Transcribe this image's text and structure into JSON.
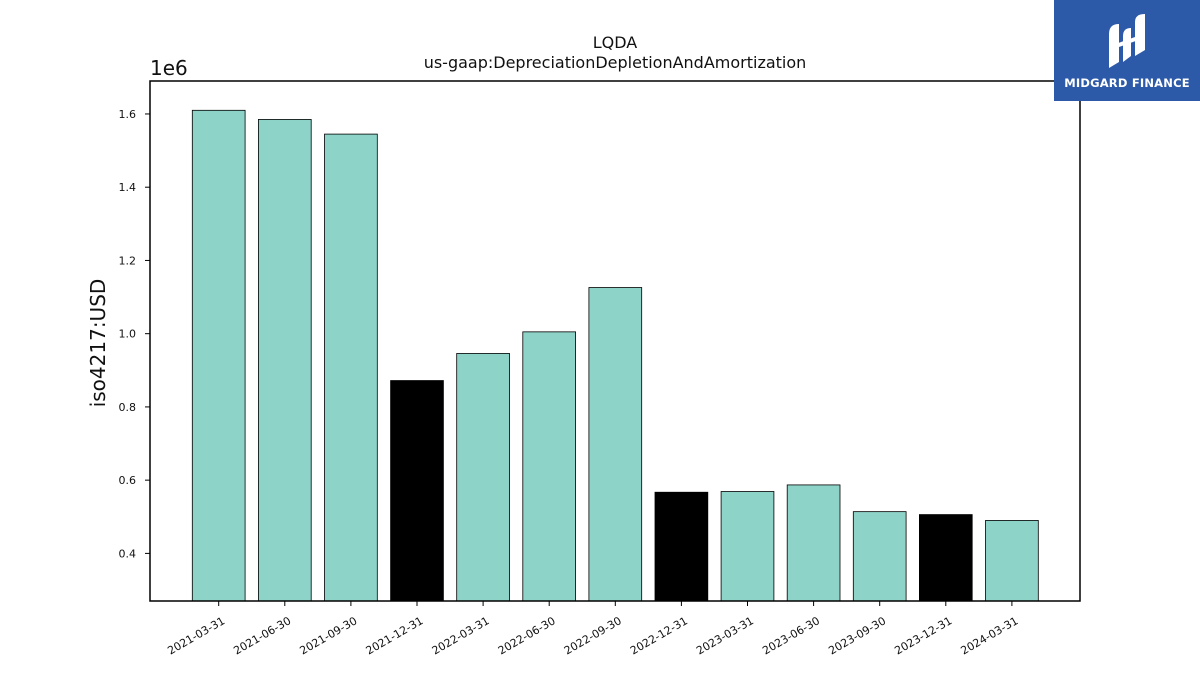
{
  "logo": {
    "brand_name": "MIDGARD FINANCE",
    "background_color": "#2d5aa8"
  },
  "chart_data": {
    "type": "bar",
    "title": "LQDA",
    "subtitle": "us-gaap:DepreciationDepletionAndAmortization",
    "ylabel": "iso4217:USD",
    "y_scale_label": "1e6",
    "y_multiplier": 1000000,
    "ylim": [
      0.27,
      1.69
    ],
    "yticks": [
      "0.4",
      "0.6",
      "0.8",
      "1.0",
      "1.2",
      "1.4",
      "1.6"
    ],
    "grid": false,
    "categories": [
      "2021-03-31",
      "2021-06-30",
      "2021-09-30",
      "2021-12-31",
      "2022-03-31",
      "2022-06-30",
      "2022-09-30",
      "2022-12-31",
      "2023-03-31",
      "2023-06-30",
      "2023-09-30",
      "2023-12-31",
      "2024-03-31"
    ],
    "values": [
      1610000,
      1585000,
      1545000,
      872000,
      946000,
      1005000,
      1126000,
      567000,
      569000,
      587000,
      514000,
      506000,
      490000
    ],
    "bar_colors": [
      "#8dd3c7",
      "#8dd3c7",
      "#8dd3c7",
      "#000000",
      "#8dd3c7",
      "#8dd3c7",
      "#8dd3c7",
      "#000000",
      "#8dd3c7",
      "#8dd3c7",
      "#8dd3c7",
      "#000000",
      "#8dd3c7"
    ]
  }
}
